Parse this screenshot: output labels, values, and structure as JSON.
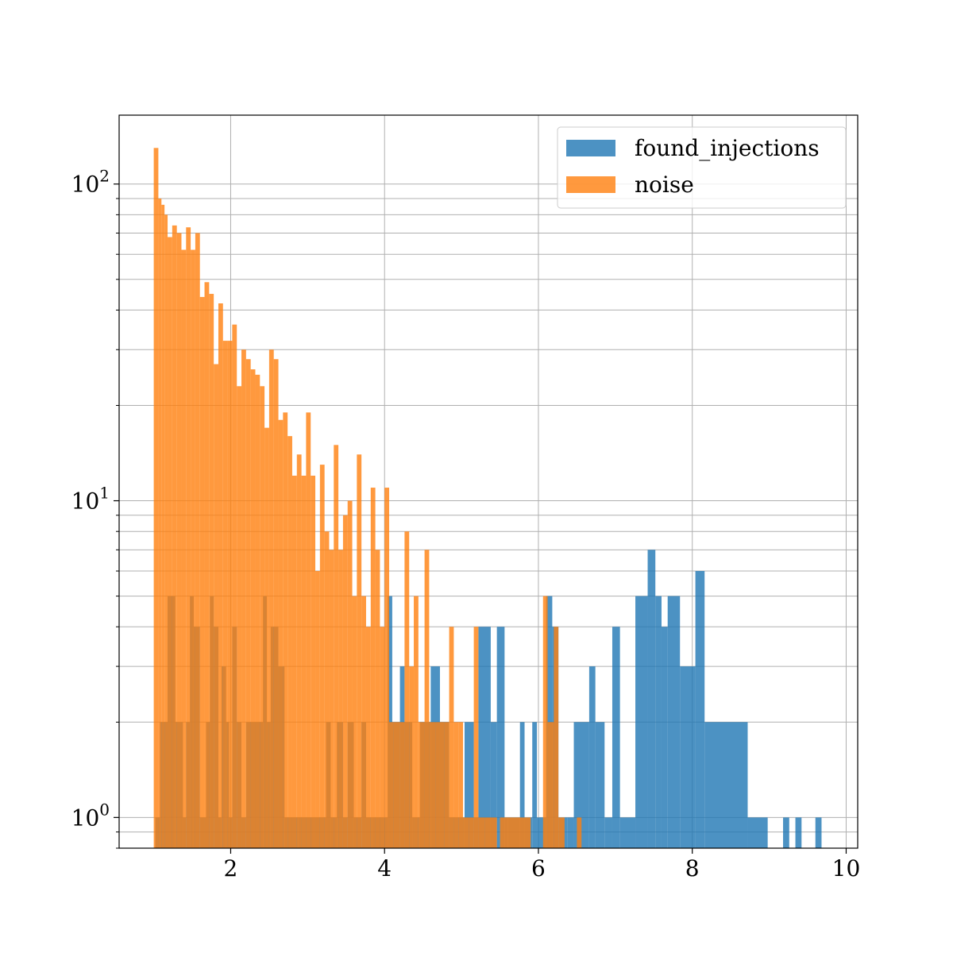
{
  "chart_data": {
    "type": "bar",
    "subtype": "overlaid-histogram",
    "title": "",
    "xlabel": "",
    "ylabel": "",
    "x_scale": "linear",
    "y_scale": "log",
    "xlim": [
      0.55,
      10.15
    ],
    "ylim": [
      0.8,
      165
    ],
    "grid": true,
    "legend_position": "top-right",
    "x_ticks": [
      {
        "value": 2,
        "label": "2"
      },
      {
        "value": 4,
        "label": "4"
      },
      {
        "value": 6,
        "label": "6"
      },
      {
        "value": 8,
        "label": "8"
      },
      {
        "value": 10,
        "label": "10"
      }
    ],
    "y_ticks": [
      {
        "value": 1,
        "base": "10",
        "exp": "0"
      },
      {
        "value": 10,
        "base": "10",
        "exp": "1"
      },
      {
        "value": 100,
        "base": "10",
        "exp": "2"
      }
    ],
    "series": [
      {
        "name": "found_injections",
        "color": "#1f77b4",
        "opacity": 0.8,
        "bins": [
          [
            1.02,
            1.08,
            1
          ],
          [
            1.08,
            1.18,
            2
          ],
          [
            1.18,
            1.28,
            5
          ],
          [
            1.28,
            1.38,
            2
          ],
          [
            1.38,
            1.42,
            1
          ],
          [
            1.42,
            1.47,
            2
          ],
          [
            1.47,
            1.52,
            5
          ],
          [
            1.52,
            1.6,
            4
          ],
          [
            1.6,
            1.68,
            1
          ],
          [
            1.68,
            1.73,
            2
          ],
          [
            1.73,
            1.78,
            5
          ],
          [
            1.78,
            1.84,
            4
          ],
          [
            1.84,
            1.88,
            1
          ],
          [
            1.88,
            1.94,
            3
          ],
          [
            1.94,
            1.98,
            2
          ],
          [
            1.98,
            2.02,
            1
          ],
          [
            2.02,
            2.08,
            4
          ],
          [
            2.08,
            2.14,
            2
          ],
          [
            2.14,
            2.2,
            1
          ],
          [
            2.2,
            2.42,
            2
          ],
          [
            2.42,
            2.47,
            5
          ],
          [
            2.47,
            2.52,
            2
          ],
          [
            2.52,
            2.62,
            4
          ],
          [
            2.62,
            2.7,
            3
          ],
          [
            2.7,
            2.88,
            1
          ],
          [
            2.88,
            3.08,
            1
          ],
          [
            3.08,
            3.24,
            1
          ],
          [
            3.24,
            3.3,
            2
          ],
          [
            3.3,
            3.38,
            1
          ],
          [
            3.38,
            3.46,
            2
          ],
          [
            3.46,
            3.52,
            1
          ],
          [
            3.52,
            3.6,
            2
          ],
          [
            3.6,
            3.7,
            1
          ],
          [
            3.7,
            3.76,
            2
          ],
          [
            3.76,
            3.84,
            1
          ],
          [
            3.84,
            4.04,
            1
          ],
          [
            4.04,
            4.1,
            5
          ],
          [
            4.1,
            4.2,
            2
          ],
          [
            4.2,
            4.26,
            3
          ],
          [
            4.26,
            4.36,
            2
          ],
          [
            4.36,
            4.46,
            1
          ],
          [
            4.46,
            4.6,
            2
          ],
          [
            4.6,
            4.72,
            3
          ],
          [
            4.72,
            4.84,
            2
          ],
          [
            4.84,
            5.04,
            1
          ],
          [
            5.04,
            5.16,
            2
          ],
          [
            5.16,
            5.22,
            1
          ],
          [
            5.22,
            5.38,
            4
          ],
          [
            5.38,
            5.46,
            2
          ],
          [
            5.46,
            5.56,
            4
          ],
          [
            5.56,
            5.6,
            1
          ],
          [
            5.6,
            5.76,
            1
          ],
          [
            5.76,
            5.82,
            2
          ],
          [
            5.82,
            5.92,
            1
          ],
          [
            5.92,
            5.98,
            2
          ],
          [
            5.98,
            6.1,
            1
          ],
          [
            6.1,
            6.18,
            5
          ],
          [
            6.18,
            6.26,
            4
          ],
          [
            6.26,
            6.38,
            1
          ],
          [
            6.38,
            6.46,
            1
          ],
          [
            6.46,
            6.66,
            2
          ],
          [
            6.66,
            6.74,
            3
          ],
          [
            6.74,
            6.86,
            2
          ],
          [
            6.86,
            6.96,
            1
          ],
          [
            6.96,
            7.06,
            4
          ],
          [
            7.06,
            7.26,
            1
          ],
          [
            7.26,
            7.42,
            5
          ],
          [
            7.42,
            7.52,
            7
          ],
          [
            7.52,
            7.6,
            5
          ],
          [
            7.6,
            7.68,
            4
          ],
          [
            7.68,
            7.84,
            5
          ],
          [
            7.84,
            8.04,
            3
          ],
          [
            8.04,
            8.16,
            6
          ],
          [
            8.16,
            8.72,
            2
          ],
          [
            8.72,
            8.98,
            1
          ],
          [
            9.18,
            9.26,
            1
          ],
          [
            9.34,
            9.42,
            1
          ],
          [
            9.6,
            9.68,
            1
          ]
        ]
      },
      {
        "name": "noise",
        "color": "#ff7f0e",
        "opacity": 0.8,
        "bins": [
          [
            1.0,
            1.06,
            130
          ],
          [
            1.06,
            1.1,
            90
          ],
          [
            1.1,
            1.14,
            86
          ],
          [
            1.14,
            1.18,
            80
          ],
          [
            1.18,
            1.24,
            68
          ],
          [
            1.24,
            1.3,
            74
          ],
          [
            1.3,
            1.36,
            70
          ],
          [
            1.36,
            1.42,
            62
          ],
          [
            1.42,
            1.48,
            73
          ],
          [
            1.48,
            1.54,
            62
          ],
          [
            1.54,
            1.6,
            70
          ],
          [
            1.6,
            1.66,
            44
          ],
          [
            1.66,
            1.72,
            49
          ],
          [
            1.72,
            1.78,
            45
          ],
          [
            1.78,
            1.84,
            27
          ],
          [
            1.84,
            1.9,
            42
          ],
          [
            1.9,
            1.96,
            32
          ],
          [
            1.96,
            2.02,
            32
          ],
          [
            2.02,
            2.08,
            36
          ],
          [
            2.08,
            2.14,
            23
          ],
          [
            2.14,
            2.2,
            30
          ],
          [
            2.2,
            2.26,
            28
          ],
          [
            2.26,
            2.32,
            26
          ],
          [
            2.32,
            2.38,
            25
          ],
          [
            2.38,
            2.44,
            23
          ],
          [
            2.44,
            2.5,
            17
          ],
          [
            2.5,
            2.56,
            30
          ],
          [
            2.56,
            2.62,
            28
          ],
          [
            2.62,
            2.68,
            18
          ],
          [
            2.68,
            2.74,
            19
          ],
          [
            2.74,
            2.8,
            16
          ],
          [
            2.8,
            2.86,
            12
          ],
          [
            2.86,
            2.92,
            14
          ],
          [
            2.92,
            2.98,
            12
          ],
          [
            2.98,
            3.04,
            19
          ],
          [
            3.04,
            3.1,
            12
          ],
          [
            3.1,
            3.16,
            6
          ],
          [
            3.16,
            3.22,
            13
          ],
          [
            3.22,
            3.28,
            8
          ],
          [
            3.28,
            3.34,
            7
          ],
          [
            3.34,
            3.4,
            15
          ],
          [
            3.4,
            3.46,
            7
          ],
          [
            3.46,
            3.52,
            9
          ],
          [
            3.52,
            3.58,
            10
          ],
          [
            3.58,
            3.64,
            5
          ],
          [
            3.64,
            3.7,
            14
          ],
          [
            3.7,
            3.76,
            5
          ],
          [
            3.76,
            3.82,
            4
          ],
          [
            3.82,
            3.88,
            11
          ],
          [
            3.88,
            3.94,
            7
          ],
          [
            3.94,
            4.0,
            4
          ],
          [
            4.0,
            4.06,
            11
          ],
          [
            4.06,
            4.12,
            2
          ],
          [
            4.12,
            4.2,
            2
          ],
          [
            4.2,
            4.26,
            2
          ],
          [
            4.26,
            4.32,
            8
          ],
          [
            4.32,
            4.38,
            3
          ],
          [
            4.38,
            4.44,
            5
          ],
          [
            4.44,
            4.52,
            2
          ],
          [
            4.52,
            4.58,
            7
          ],
          [
            4.58,
            4.66,
            2
          ],
          [
            4.66,
            4.72,
            2
          ],
          [
            4.72,
            4.78,
            2
          ],
          [
            4.78,
            4.84,
            2
          ],
          [
            4.84,
            4.9,
            4
          ],
          [
            4.9,
            4.96,
            2
          ],
          [
            4.96,
            5.02,
            2
          ],
          [
            5.02,
            5.1,
            1
          ],
          [
            5.1,
            5.16,
            1
          ],
          [
            5.16,
            5.22,
            4
          ],
          [
            5.22,
            5.3,
            1
          ],
          [
            5.3,
            5.46,
            1
          ],
          [
            5.5,
            5.9,
            1
          ],
          [
            6.06,
            6.12,
            5
          ],
          [
            6.12,
            6.2,
            2
          ],
          [
            6.2,
            6.26,
            4
          ],
          [
            6.26,
            6.34,
            1
          ],
          [
            6.5,
            6.56,
            1
          ]
        ]
      }
    ]
  }
}
